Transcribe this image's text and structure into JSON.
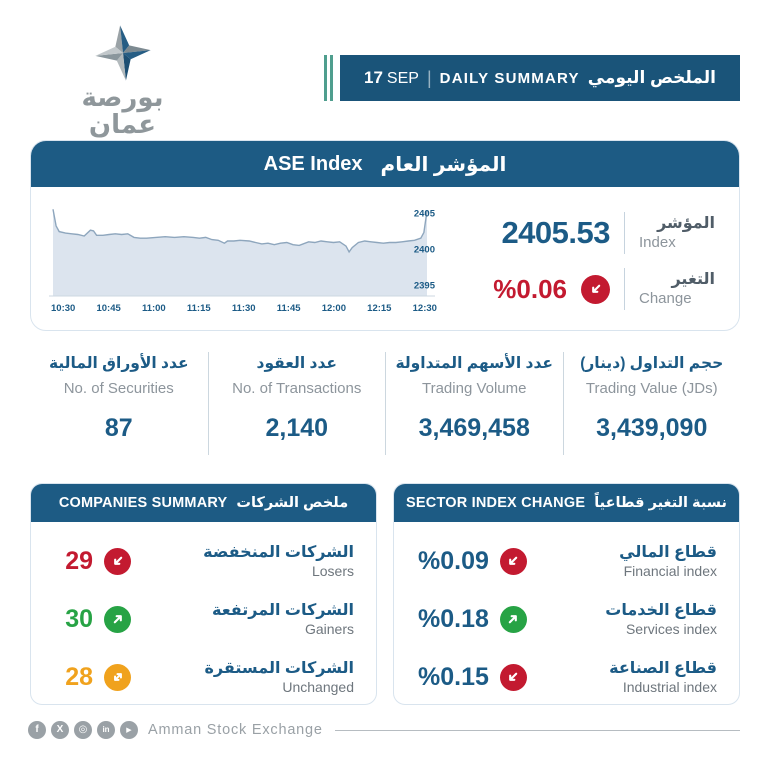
{
  "logo": {
    "title_ar": "بورصة عمان",
    "title_en": "Amman Stock Exchange"
  },
  "banner": {
    "day": "17",
    "month": "SEP",
    "separator": "|",
    "title_en": "DAILY SUMMARY",
    "title_ar": "الملخص اليومي"
  },
  "index_card": {
    "header_en": "ASE Index",
    "header_ar": "المؤشر العام",
    "index": {
      "label_ar": "المؤشر",
      "label_en": "Index",
      "value": "2405.53"
    },
    "change": {
      "label_ar": "التغير",
      "label_en": "Change",
      "value": "%0.06",
      "icon": "arrow-down-left",
      "color": "#c31a30"
    }
  },
  "chart_data": {
    "type": "area",
    "title": "ASE Index intraday movement",
    "x_ticks": [
      "10:30",
      "10:45",
      "11:00",
      "11:15",
      "11:30",
      "11:45",
      "12:00",
      "12:15",
      "12:30"
    ],
    "y_ticks": [
      2405,
      2400,
      2395
    ],
    "ylim": [
      2393.5,
      2406.5
    ],
    "grid": false,
    "legend": "none",
    "line_color": "#8ea6bd",
    "fill_color": "#dce4ee",
    "points": [
      [
        0,
        2405.5
      ],
      [
        1,
        2403.2
      ],
      [
        2,
        2402.4
      ],
      [
        4,
        2402.2
      ],
      [
        6,
        2402.1
      ],
      [
        8,
        2402.0
      ],
      [
        10,
        2401.8
      ],
      [
        12,
        2402.6
      ],
      [
        13,
        2402.5
      ],
      [
        14,
        2401.9
      ],
      [
        16,
        2401.9
      ],
      [
        18,
        2402.0
      ],
      [
        20,
        2402.1
      ],
      [
        22,
        2402.0
      ],
      [
        24,
        2402.1
      ],
      [
        26,
        2401.6
      ],
      [
        28,
        2401.5
      ],
      [
        30,
        2401.5
      ],
      [
        33,
        2401.6
      ],
      [
        36,
        2401.7
      ],
      [
        39,
        2401.6
      ],
      [
        42,
        2401.7
      ],
      [
        45,
        2401.6
      ],
      [
        47,
        2401.5
      ],
      [
        49,
        2401.6
      ],
      [
        51,
        2401.3
      ],
      [
        53,
        2401.2
      ],
      [
        55,
        2400.8
      ],
      [
        56,
        2401.1
      ],
      [
        58,
        2401.1
      ],
      [
        60,
        2401.2
      ],
      [
        63,
        2401.1
      ],
      [
        65,
        2400.9
      ],
      [
        67,
        2400.7
      ],
      [
        69,
        2400.8
      ],
      [
        71,
        2400.6
      ],
      [
        73,
        2400.8
      ],
      [
        75,
        2400.9
      ],
      [
        77,
        2400.6
      ],
      [
        79,
        2400.5
      ],
      [
        82,
        2401.0
      ],
      [
        84,
        2400.9
      ],
      [
        86,
        2401.1
      ],
      [
        88,
        2401.0
      ],
      [
        90,
        2400.9
      ],
      [
        92,
        2401.0
      ],
      [
        94,
        2400.4
      ],
      [
        95,
        2399.6
      ],
      [
        96,
        2400.2
      ],
      [
        98,
        2400.9
      ],
      [
        100,
        2401.1
      ],
      [
        102,
        2401.0
      ],
      [
        104,
        2400.9
      ],
      [
        106,
        2400.8
      ],
      [
        108,
        2400.9
      ],
      [
        110,
        2400.9
      ],
      [
        112,
        2401.0
      ],
      [
        114,
        2401.1
      ],
      [
        116,
        2401.2
      ],
      [
        118,
        2401.5
      ],
      [
        119,
        2402.3
      ],
      [
        120,
        2405.3
      ]
    ]
  },
  "stats": {
    "items": [
      {
        "label_ar": "عدد الأوراق المالية",
        "label_en": "No. of Securities",
        "value": "87"
      },
      {
        "label_ar": "عدد العقود",
        "label_en": "No. of Transactions",
        "value": "2,140"
      },
      {
        "label_ar": "عدد الأسهم المتداولة",
        "label_en": "Trading Volume",
        "value": "3,469,458"
      },
      {
        "label_ar": "حجم التداول (دينار)",
        "label_en": "Trading Value (JDs)",
        "value": "3,439,090"
      }
    ]
  },
  "companies": {
    "header_en": "COMPANIES SUMMARY",
    "header_ar": "ملخص الشركات",
    "rows": [
      {
        "value": "29",
        "label_ar": "الشركات المنخفضة",
        "label_en": "Losers",
        "icon": "arrow-down-left",
        "color": "#c31a30"
      },
      {
        "value": "30",
        "label_ar": "الشركات المرتفعة",
        "label_en": "Gainers",
        "icon": "arrow-up-right",
        "color": "#27a345"
      },
      {
        "value": "28",
        "label_ar": "الشركات المستقرة",
        "label_en": "Unchanged",
        "icon": "arrow-diagonal-both",
        "color": "#f0a21d"
      }
    ]
  },
  "sectors": {
    "header_en": "SECTOR INDEX CHANGE",
    "header_ar": "نسبة التغير قطاعياً",
    "rows": [
      {
        "value": "%0.09",
        "label_ar": "قطاع المالي",
        "label_en": "Financial index",
        "icon": "arrow-down-left",
        "color": "#c31a30"
      },
      {
        "value": "%0.18",
        "label_ar": "قطاع الخدمات",
        "label_en": "Services index",
        "icon": "arrow-up-right",
        "color": "#27a345"
      },
      {
        "value": "%0.15",
        "label_ar": "قطاع الصناعة",
        "label_en": "Industrial index",
        "icon": "arrow-down-left",
        "color": "#c31a30"
      }
    ]
  },
  "footer": {
    "text": "Amman Stock Exchange",
    "social": [
      "facebook",
      "x-twitter",
      "instagram",
      "linkedin",
      "youtube"
    ]
  },
  "colors": {
    "primary_blue": "#1d5b84",
    "banner_blue": "#1a5479",
    "teal_accent": "#4f9e8e",
    "red": "#c31a30",
    "green": "#27a345",
    "orange": "#f0a21d"
  }
}
